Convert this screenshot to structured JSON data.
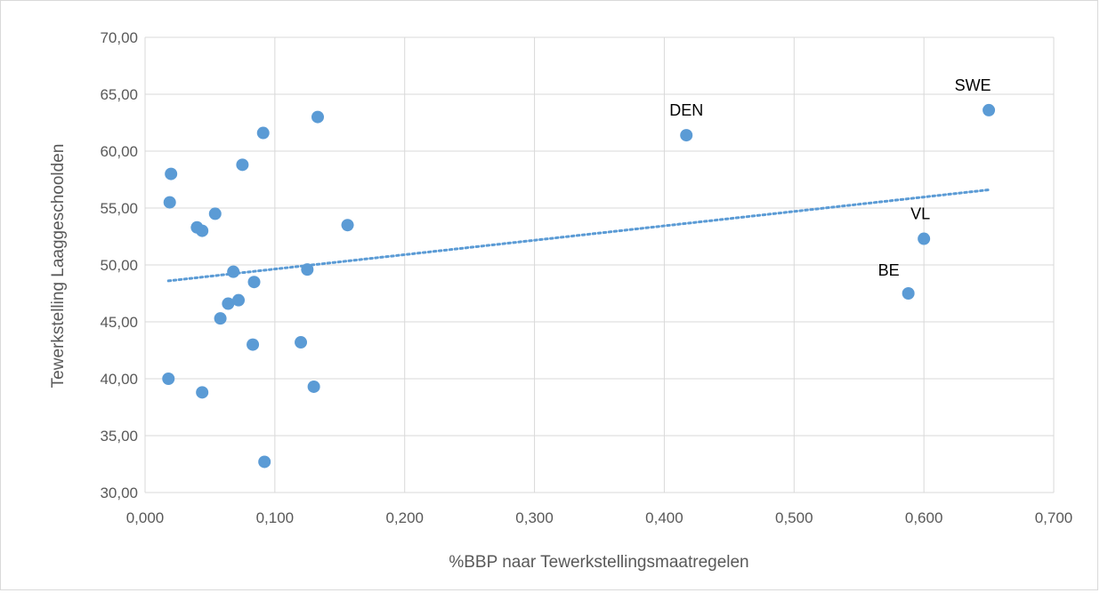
{
  "chart_data": {
    "type": "scatter",
    "title": "",
    "xlabel": "%BBP naar Tewerkstellingsmaatregelen",
    "ylabel": "Tewerkstelling Laaggeschoolden",
    "xlim": [
      0,
      0.7
    ],
    "ylim": [
      30,
      70
    ],
    "x_ticks": [
      "0,000",
      "0,100",
      "0,200",
      "0,300",
      "0,400",
      "0,500",
      "0,600",
      "0,700"
    ],
    "y_ticks": [
      "30,00",
      "35,00",
      "40,00",
      "45,00",
      "50,00",
      "55,00",
      "60,00",
      "65,00",
      "70,00"
    ],
    "x_tick_values": [
      0,
      0.1,
      0.2,
      0.3,
      0.4,
      0.5,
      0.6,
      0.7
    ],
    "y_tick_values": [
      30,
      35,
      40,
      45,
      50,
      55,
      60,
      65,
      70
    ],
    "grid": true,
    "legend": "none",
    "marker_color": "#5b9bd5",
    "trendline": {
      "type": "linear",
      "style": "dotted",
      "color": "#5b9bd5",
      "x": [
        0.018,
        0.65
      ],
      "y": [
        48.6,
        56.6
      ]
    },
    "points": [
      {
        "x": 0.02,
        "y": 58.0,
        "label": ""
      },
      {
        "x": 0.019,
        "y": 55.5,
        "label": ""
      },
      {
        "x": 0.018,
        "y": 40.0,
        "label": ""
      },
      {
        "x": 0.04,
        "y": 53.3,
        "label": ""
      },
      {
        "x": 0.044,
        "y": 53.0,
        "label": ""
      },
      {
        "x": 0.044,
        "y": 38.8,
        "label": ""
      },
      {
        "x": 0.054,
        "y": 54.5,
        "label": ""
      },
      {
        "x": 0.058,
        "y": 45.3,
        "label": ""
      },
      {
        "x": 0.064,
        "y": 46.6,
        "label": ""
      },
      {
        "x": 0.068,
        "y": 49.4,
        "label": ""
      },
      {
        "x": 0.072,
        "y": 46.9,
        "label": ""
      },
      {
        "x": 0.075,
        "y": 58.8,
        "label": ""
      },
      {
        "x": 0.083,
        "y": 43.0,
        "label": ""
      },
      {
        "x": 0.084,
        "y": 48.5,
        "label": ""
      },
      {
        "x": 0.091,
        "y": 61.6,
        "label": ""
      },
      {
        "x": 0.092,
        "y": 32.7,
        "label": ""
      },
      {
        "x": 0.12,
        "y": 43.2,
        "label": ""
      },
      {
        "x": 0.125,
        "y": 49.6,
        "label": ""
      },
      {
        "x": 0.13,
        "y": 39.3,
        "label": ""
      },
      {
        "x": 0.133,
        "y": 63.0,
        "label": ""
      },
      {
        "x": 0.156,
        "y": 53.5,
        "label": ""
      },
      {
        "x": 0.417,
        "y": 61.4,
        "label": "DEN"
      },
      {
        "x": 0.588,
        "y": 47.5,
        "label": "BE"
      },
      {
        "x": 0.6,
        "y": 52.3,
        "label": "VL"
      },
      {
        "x": 0.65,
        "y": 63.6,
        "label": "SWE"
      }
    ]
  }
}
